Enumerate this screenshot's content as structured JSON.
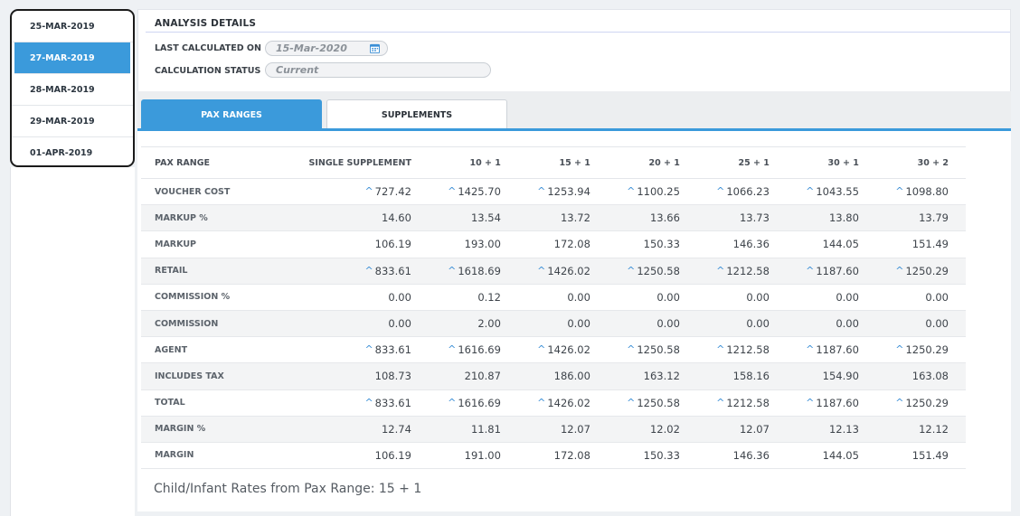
{
  "dates": [
    {
      "label": "25-MAR-2019",
      "active": false
    },
    {
      "label": "27-MAR-2019",
      "active": true
    },
    {
      "label": "28-MAR-2019",
      "active": false
    },
    {
      "label": "29-MAR-2019",
      "active": false
    },
    {
      "label": "01-APR-2019",
      "active": false
    }
  ],
  "analysis": {
    "title": "ANALYSIS DETAILS",
    "last_calculated_label": "LAST CALCULATED ON",
    "last_calculated_value": "15-Mar-2020",
    "status_label": "CALCULATION STATUS",
    "status_value": "Current"
  },
  "tabs": {
    "pax_ranges": "PAX RANGES",
    "supplements": "SUPPLEMENTS"
  },
  "table": {
    "headers": [
      "PAX RANGE",
      "SINGLE SUPPLEMENT",
      "10 + 1",
      "15 + 1",
      "20 + 1",
      "25 + 1",
      "30 + 1",
      "30 + 2"
    ],
    "rows": [
      {
        "label": "VOUCHER COST",
        "arrow": true,
        "values": [
          "727.42",
          "1425.70",
          "1253.94",
          "1100.25",
          "1066.23",
          "1043.55",
          "1098.80"
        ]
      },
      {
        "label": "MARKUP %",
        "arrow": false,
        "values": [
          "14.60",
          "13.54",
          "13.72",
          "13.66",
          "13.73",
          "13.80",
          "13.79"
        ]
      },
      {
        "label": "MARKUP",
        "arrow": false,
        "values": [
          "106.19",
          "193.00",
          "172.08",
          "150.33",
          "146.36",
          "144.05",
          "151.49"
        ]
      },
      {
        "label": "RETAIL",
        "arrow": true,
        "values": [
          "833.61",
          "1618.69",
          "1426.02",
          "1250.58",
          "1212.58",
          "1187.60",
          "1250.29"
        ]
      },
      {
        "label": "COMMISSION %",
        "arrow": false,
        "values": [
          "0.00",
          "0.12",
          "0.00",
          "0.00",
          "0.00",
          "0.00",
          "0.00"
        ]
      },
      {
        "label": "COMMISSION",
        "arrow": false,
        "values": [
          "0.00",
          "2.00",
          "0.00",
          "0.00",
          "0.00",
          "0.00",
          "0.00"
        ]
      },
      {
        "label": "AGENT",
        "arrow": true,
        "values": [
          "833.61",
          "1616.69",
          "1426.02",
          "1250.58",
          "1212.58",
          "1187.60",
          "1250.29"
        ]
      },
      {
        "label": "INCLUDES TAX",
        "arrow": false,
        "values": [
          "108.73",
          "210.87",
          "186.00",
          "163.12",
          "158.16",
          "154.90",
          "163.08"
        ]
      },
      {
        "label": "TOTAL",
        "arrow": true,
        "values": [
          "833.61",
          "1616.69",
          "1426.02",
          "1250.58",
          "1212.58",
          "1187.60",
          "1250.29"
        ]
      },
      {
        "label": "MARGIN %",
        "arrow": false,
        "values": [
          "12.74",
          "11.81",
          "12.07",
          "12.02",
          "12.07",
          "12.13",
          "12.12"
        ]
      },
      {
        "label": "MARGIN",
        "arrow": false,
        "values": [
          "106.19",
          "191.00",
          "172.08",
          "150.33",
          "146.36",
          "144.05",
          "151.49"
        ]
      }
    ]
  },
  "footnote": "Child/Infant Rates from Pax Range: 15 + 1",
  "icons": {
    "arrow": "chevron-up-icon",
    "calendar": "calendar-icon"
  },
  "colors": {
    "accent": "#3b9adb",
    "arrow": "#3b8fd6"
  }
}
